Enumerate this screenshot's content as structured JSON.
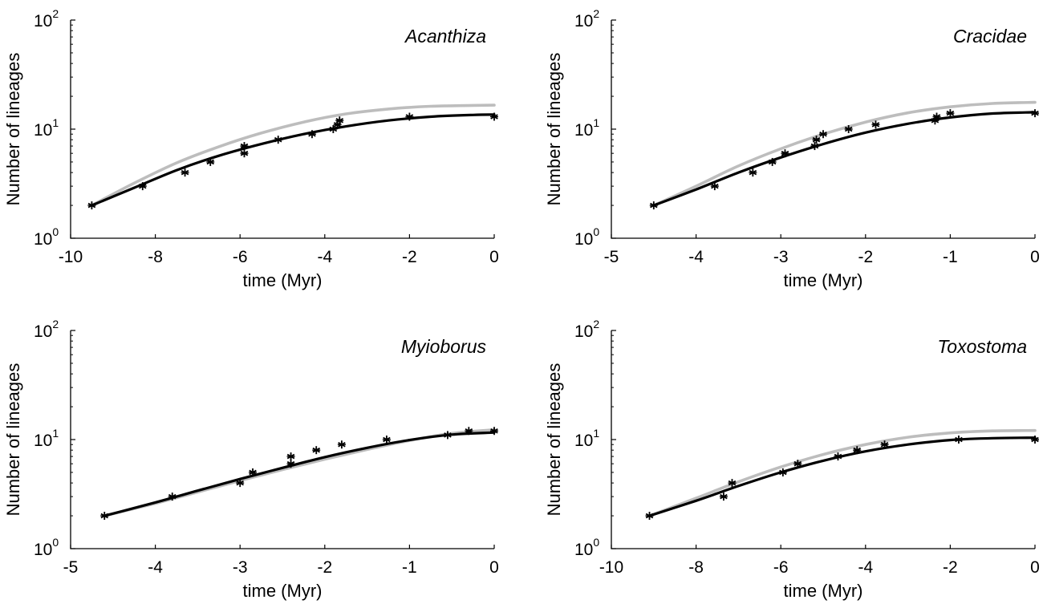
{
  "chart_data": [
    {
      "type": "line",
      "title": "Acanthiza",
      "xlabel": "time (Myr)",
      "ylabel": "Number of lineages",
      "xlim": [
        -10,
        0
      ],
      "ylim": [
        1,
        100
      ],
      "yscale": "log",
      "grid": false,
      "xticks": [
        "-10",
        "-8",
        "-6",
        "-4",
        "-2",
        "0"
      ],
      "yticks": [
        {
          "base": "10",
          "exp": "0"
        },
        {
          "base": "10",
          "exp": "1"
        },
        {
          "base": "10",
          "exp": "2"
        }
      ],
      "series": [
        {
          "kind": "line",
          "color": "#bdbdbd",
          "x": [
            -9.5,
            -8.5,
            -7.5,
            -6.5,
            -5.5,
            -4.5,
            -3.5,
            -2.5,
            -1.5,
            -0.5,
            0
          ],
          "y": [
            2.0,
            3.2,
            4.9,
            6.9,
            9.2,
            11.6,
            13.8,
            15.3,
            16.2,
            16.5,
            16.6
          ]
        },
        {
          "kind": "line",
          "color": "#000000",
          "x": [
            -9.5,
            -8.5,
            -7.5,
            -6.5,
            -5.5,
            -4.5,
            -3.5,
            -2.5,
            -1.5,
            -0.5,
            0
          ],
          "y": [
            2.0,
            2.9,
            4.2,
            5.7,
            7.3,
            9.0,
            10.6,
            12.0,
            13.0,
            13.5,
            13.6
          ]
        },
        {
          "kind": "scatter",
          "color": "#000000",
          "x": [
            -9.5,
            -8.3,
            -7.3,
            -6.7,
            -5.9,
            -5.9,
            -5.1,
            -4.3,
            -3.8,
            -3.7,
            -3.65,
            -2.0,
            0
          ],
          "y": [
            2,
            3,
            4,
            5,
            6,
            7,
            8,
            9,
            10,
            11,
            12,
            13,
            13
          ]
        }
      ]
    },
    {
      "type": "line",
      "title": "Cracidae",
      "xlabel": "time (Myr)",
      "ylabel": "Number of lineages",
      "xlim": [
        -5,
        0
      ],
      "ylim": [
        1,
        100
      ],
      "yscale": "log",
      "grid": false,
      "xticks": [
        "-5",
        "-4",
        "-3",
        "-2",
        "-1",
        "0"
      ],
      "yticks": [
        {
          "base": "10",
          "exp": "0"
        },
        {
          "base": "10",
          "exp": "1"
        },
        {
          "base": "10",
          "exp": "2"
        }
      ],
      "series": [
        {
          "kind": "line",
          "color": "#bdbdbd",
          "x": [
            -4.5,
            -4.0,
            -3.5,
            -3.0,
            -2.5,
            -2.0,
            -1.5,
            -1.0,
            -0.5,
            0
          ],
          "y": [
            2.0,
            3.0,
            4.6,
            6.6,
            9.0,
            11.6,
            14.1,
            16.0,
            17.2,
            17.6
          ]
        },
        {
          "kind": "line",
          "color": "#000000",
          "x": [
            -4.5,
            -4.0,
            -3.5,
            -3.0,
            -2.5,
            -2.0,
            -1.5,
            -1.0,
            -0.5,
            0
          ],
          "y": [
            2.0,
            2.8,
            4.0,
            5.5,
            7.3,
            9.3,
            11.2,
            12.8,
            13.9,
            14.3
          ]
        },
        {
          "kind": "scatter",
          "color": "#000000",
          "x": [
            -4.5,
            -3.78,
            -3.33,
            -3.1,
            -2.95,
            -2.6,
            -2.58,
            -2.5,
            -2.2,
            -1.88,
            -1.18,
            -1.16,
            -1.0,
            0
          ],
          "y": [
            2,
            3,
            4,
            5,
            6,
            7,
            8,
            9,
            10,
            11,
            12,
            13,
            14,
            14
          ]
        }
      ]
    },
    {
      "type": "line",
      "title": "Myioborus",
      "xlabel": "time (Myr)",
      "ylabel": "Number of lineages",
      "xlim": [
        -5,
        0
      ],
      "ylim": [
        1,
        100
      ],
      "yscale": "log",
      "grid": false,
      "xticks": [
        "-5",
        "-4",
        "-3",
        "-2",
        "-1",
        "0"
      ],
      "yticks": [
        {
          "base": "10",
          "exp": "0"
        },
        {
          "base": "10",
          "exp": "1"
        },
        {
          "base": "10",
          "exp": "2"
        }
      ],
      "series": [
        {
          "kind": "line",
          "color": "#bdbdbd",
          "x": [
            -4.6,
            -4.0,
            -3.5,
            -3.0,
            -2.5,
            -2.0,
            -1.5,
            -1.0,
            -0.5,
            0
          ],
          "y": [
            2.0,
            2.6,
            3.3,
            4.2,
            5.3,
            6.6,
            8.1,
            9.8,
            11.4,
            12.3
          ]
        },
        {
          "kind": "line",
          "color": "#000000",
          "x": [
            -4.6,
            -4.0,
            -3.5,
            -3.0,
            -2.5,
            -2.0,
            -1.5,
            -1.0,
            -0.5,
            0
          ],
          "y": [
            2.0,
            2.65,
            3.4,
            4.35,
            5.5,
            6.9,
            8.4,
            9.9,
            11.1,
            11.6
          ]
        },
        {
          "kind": "scatter",
          "color": "#000000",
          "x": [
            -4.6,
            -3.8,
            -3.0,
            -2.85,
            -2.4,
            -2.4,
            -2.1,
            -1.8,
            -1.27,
            -0.55,
            -0.3,
            0
          ],
          "y": [
            2,
            3,
            4,
            5,
            6,
            7,
            8,
            9,
            10,
            11,
            12,
            12
          ]
        }
      ]
    },
    {
      "type": "line",
      "title": "Toxostoma",
      "xlabel": "time (Myr)",
      "ylabel": "Number of lineages",
      "xlim": [
        -10,
        0
      ],
      "ylim": [
        1,
        100
      ],
      "yscale": "log",
      "grid": false,
      "xticks": [
        "-10",
        "-8",
        "-6",
        "-4",
        "-2",
        "0"
      ],
      "yticks": [
        {
          "base": "10",
          "exp": "0"
        },
        {
          "base": "10",
          "exp": "1"
        },
        {
          "base": "10",
          "exp": "2"
        }
      ],
      "series": [
        {
          "kind": "line",
          "color": "#bdbdbd",
          "x": [
            -9.1,
            -8.0,
            -7.0,
            -6.0,
            -5.0,
            -4.0,
            -3.0,
            -2.0,
            -1.0,
            0
          ],
          "y": [
            2.0,
            2.9,
            4.1,
            5.6,
            7.3,
            9.0,
            10.5,
            11.5,
            12.0,
            12.1
          ]
        },
        {
          "kind": "line",
          "color": "#000000",
          "x": [
            -9.1,
            -8.0,
            -7.0,
            -6.0,
            -5.0,
            -4.0,
            -3.0,
            -2.0,
            -1.0,
            0
          ],
          "y": [
            2.0,
            2.75,
            3.75,
            5.0,
            6.4,
            7.8,
            9.0,
            9.9,
            10.3,
            10.4
          ]
        },
        {
          "kind": "scatter",
          "color": "#000000",
          "x": [
            -9.1,
            -7.35,
            -7.15,
            -5.95,
            -5.6,
            -4.65,
            -4.2,
            -3.55,
            -1.8,
            0
          ],
          "y": [
            2,
            3,
            4,
            5,
            6,
            7,
            8,
            9,
            10,
            10
          ]
        }
      ]
    }
  ]
}
